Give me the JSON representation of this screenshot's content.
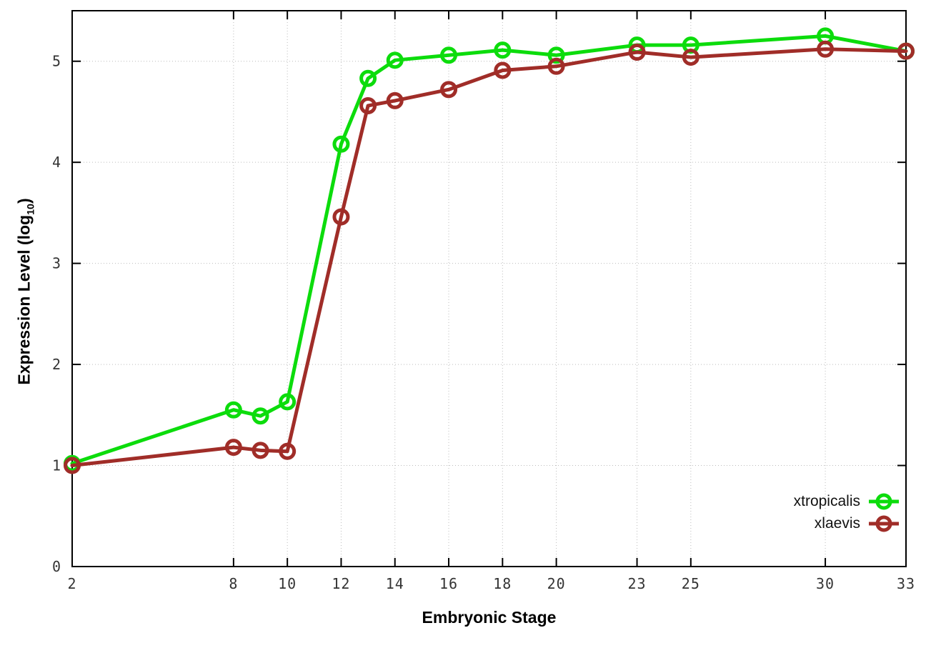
{
  "chart_data": {
    "type": "line",
    "title": "",
    "xlabel": "Embryonic Stage",
    "ylabel": {
      "prefix": "Expression Level (log",
      "subscript": "10",
      "suffix": ")"
    },
    "x": [
      2,
      8,
      9,
      10,
      12,
      13,
      14,
      16,
      18,
      20,
      23,
      25,
      30,
      33
    ],
    "series": [
      {
        "name": "xtropicalis",
        "color": "#0cdc0c",
        "marker": "open-circle",
        "values": [
          1.02,
          1.55,
          1.49,
          1.63,
          4.18,
          4.83,
          5.01,
          5.06,
          5.11,
          5.06,
          5.16,
          5.16,
          5.25,
          5.1
        ]
      },
      {
        "name": "xlaevis",
        "color": "#a02d28",
        "marker": "open-circle",
        "values": [
          1.0,
          1.18,
          1.15,
          1.14,
          3.46,
          4.56,
          4.61,
          4.72,
          4.91,
          4.95,
          5.09,
          5.04,
          5.12,
          5.1
        ]
      }
    ],
    "xlim": [
      2,
      33
    ],
    "ylim": [
      0,
      5.5
    ],
    "xticks": [
      2,
      8,
      10,
      12,
      14,
      16,
      18,
      20,
      23,
      25,
      30,
      33
    ],
    "yticks": [
      0,
      1,
      2,
      3,
      4,
      5
    ],
    "grid": "dotted",
    "legend_position": "inside-bottom-right",
    "axis_color": "#000000",
    "grid_color": "#bcbcbc",
    "tick_label_color": "#343434",
    "background_color": "#ffffff"
  }
}
